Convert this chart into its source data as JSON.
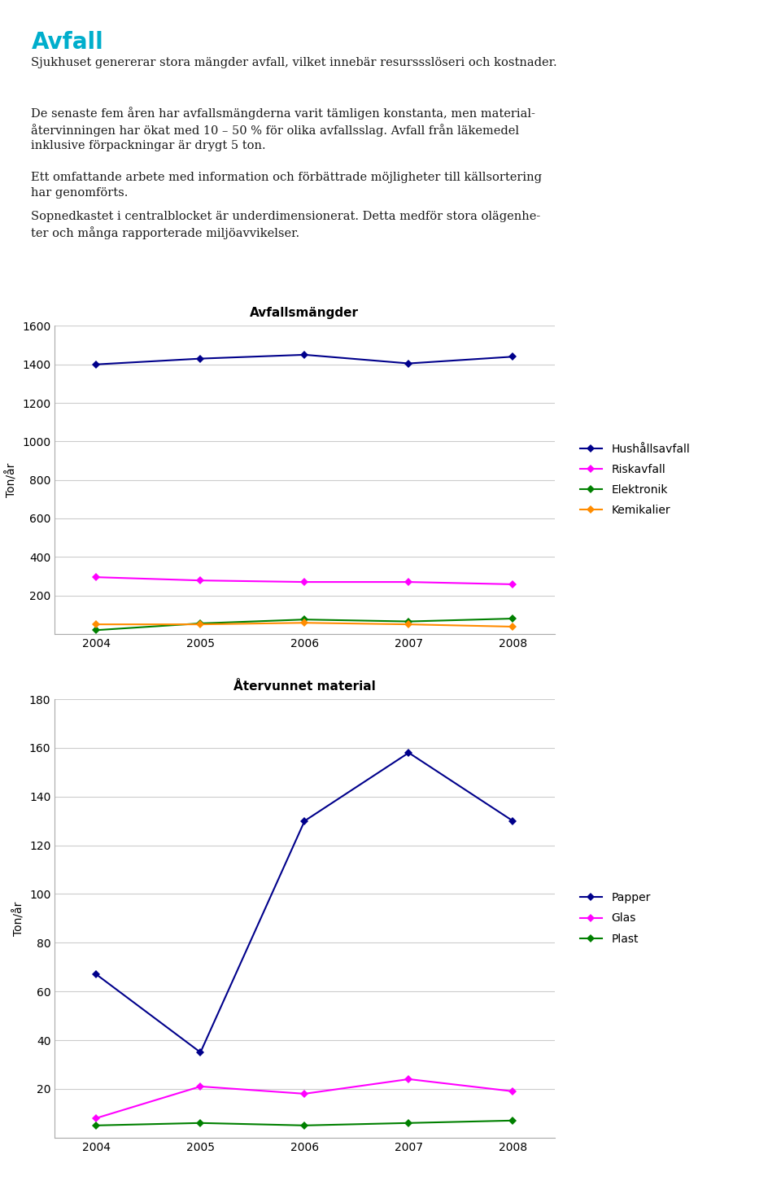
{
  "title": "Avfall",
  "title_color": "#00AECC",
  "para1": "Sjukhuset genererar stora mängder avfall, vilket innebär resurssslöseri och kostnader.",
  "para2": "De senaste fem åren har avfallsmängderna varit tämligen konstanta, men material-\nåtervinningen har ökat med 10 – 50 % för olika avfallsslag. Avfall från läkemedel\ninklusive förpackningar är drygt 5 ton.",
  "para3": "Ett omfattande arbete med information och förbättrade möjligheter till källsortering\nhar genomförts.",
  "para4": "Sopnedkastet i centralblocket är underdimensionerat. Detta medför stora olägenhe-\nter och många rapporterade miljöavvikelser.",
  "chart1_title": "Avfallsmängder",
  "chart1_ylabel": "Ton/år",
  "chart1_ylim": [
    0,
    1600
  ],
  "chart1_yticks": [
    0,
    200,
    400,
    600,
    800,
    1000,
    1200,
    1400,
    1600
  ],
  "chart1_years": [
    2004,
    2005,
    2006,
    2007,
    2008
  ],
  "chart1_hushall": [
    1400,
    1430,
    1450,
    1405,
    1440
  ],
  "chart1_riskavfall": [
    295,
    278,
    270,
    270,
    258
  ],
  "chart1_elektronik": [
    20,
    55,
    75,
    65,
    80
  ],
  "chart1_kemikalier": [
    50,
    50,
    58,
    50,
    38
  ],
  "chart1_colors": [
    "#00008B",
    "#FF00FF",
    "#008000",
    "#FF8C00"
  ],
  "chart1_labels": [
    "Hushållsavfall",
    "Riskavfall",
    "Elektronik",
    "Kemikalier"
  ],
  "chart2_title": "Återvunnet material",
  "chart2_ylabel": "Ton/år",
  "chart2_ylim": [
    0,
    180
  ],
  "chart2_yticks": [
    0,
    20,
    40,
    60,
    80,
    100,
    120,
    140,
    160,
    180
  ],
  "chart2_years": [
    2004,
    2005,
    2006,
    2007,
    2008
  ],
  "chart2_papper": [
    67,
    35,
    130,
    158,
    130
  ],
  "chart2_glas": [
    8,
    21,
    18,
    24,
    19
  ],
  "chart2_plast": [
    5,
    6,
    5,
    6,
    7
  ],
  "chart2_colors": [
    "#00008B",
    "#FF00FF",
    "#008000"
  ],
  "chart2_labels": [
    "Papper",
    "Glas",
    "Plast"
  ]
}
